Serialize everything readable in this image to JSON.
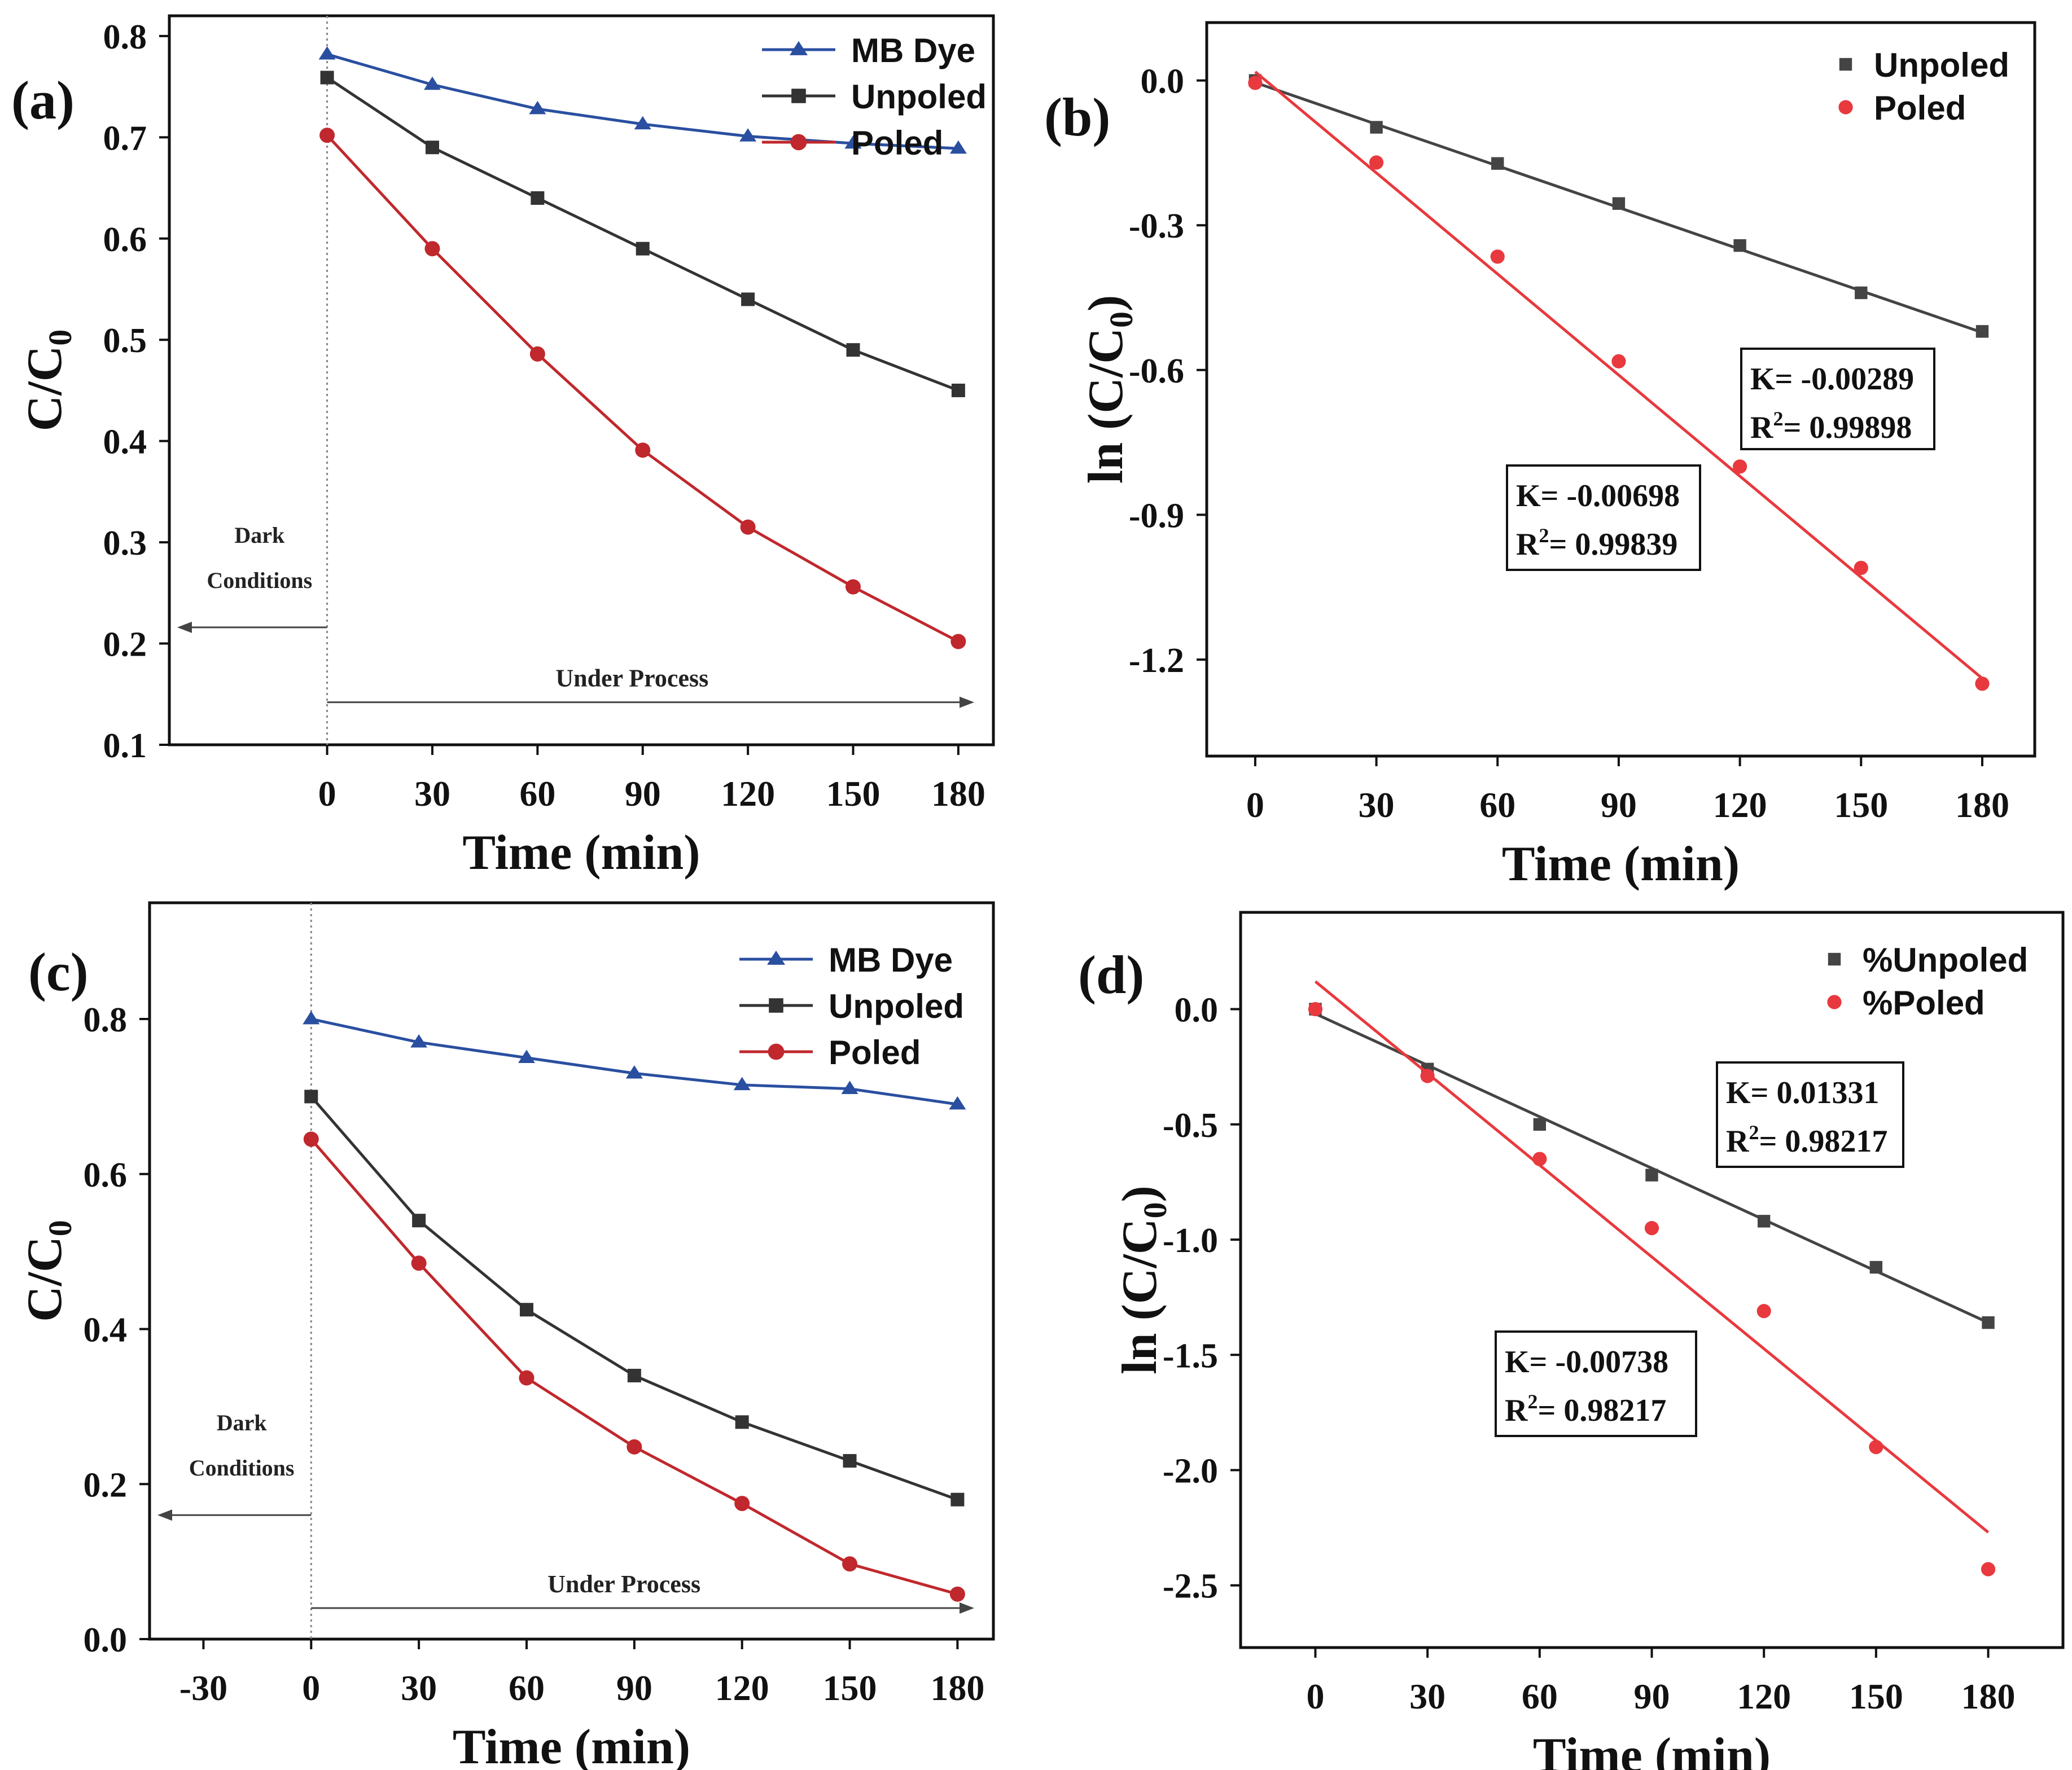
{
  "chart_data": [
    {
      "type": "line",
      "panel_label": "(a)",
      "xlabel": "Time (min)",
      "ylabel_main": "C/C",
      "ylabel_sub": "0",
      "xlim": [
        -45,
        190
      ],
      "ylim": [
        0.1,
        0.82
      ],
      "xticks": [
        0,
        30,
        60,
        90,
        120,
        150,
        180
      ],
      "xtick_labels": [
        "0",
        "30",
        "60",
        "90",
        "120",
        "150",
        "180"
      ],
      "yticks": [
        0.1,
        0.2,
        0.3,
        0.4,
        0.5,
        0.6,
        0.7,
        0.8
      ],
      "ytick_labels": [
        "0.1",
        "0.2",
        "0.3",
        "0.4",
        "0.5",
        "0.6",
        "0.7",
        "0.8"
      ],
      "series": [
        {
          "name": "MB Dye",
          "color": "#2a4fa0",
          "marker": "triangle",
          "x": [
            0,
            30,
            60,
            90,
            120,
            150,
            180
          ],
          "values": [
            0.782,
            0.752,
            0.728,
            0.713,
            0.701,
            0.694,
            0.689
          ]
        },
        {
          "name": "Unpoled",
          "color": "#333333",
          "marker": "square",
          "x": [
            0,
            30,
            60,
            90,
            120,
            150,
            180
          ],
          "values": [
            0.759,
            0.69,
            0.64,
            0.59,
            0.54,
            0.49,
            0.45
          ]
        },
        {
          "name": "Poled",
          "color": "#c0282d",
          "marker": "circle",
          "x": [
            0,
            30,
            60,
            90,
            120,
            150,
            180
          ],
          "values": [
            0.702,
            0.59,
            0.486,
            0.391,
            0.315,
            0.256,
            0.202
          ]
        }
      ],
      "annotations": {
        "dark_line1": "Dark",
        "dark_line2": "Conditions",
        "process": "Under Process",
        "dark_arrow_y": 0.216,
        "process_arrow_y": 0.142
      }
    },
    {
      "type": "scatter",
      "panel_label": "(b)",
      "xlabel": "Time (min)",
      "ylabel_main": "ln (C/C",
      "ylabel_sub": "0",
      "ylabel_end": ")",
      "xlim": [
        -12,
        193
      ],
      "ylim": [
        -1.4,
        0.12
      ],
      "xticks": [
        0,
        30,
        60,
        90,
        120,
        150,
        180
      ],
      "xtick_labels": [
        "0",
        "30",
        "60",
        "90",
        "120",
        "150",
        "180"
      ],
      "yticks": [
        0.0,
        -0.3,
        -0.6,
        -0.9,
        -1.2
      ],
      "ytick_labels": [
        "0.0",
        "-0.3",
        "-0.6",
        "-0.9",
        "-1.2"
      ],
      "series": [
        {
          "name": "Unpoled",
          "color": "#444444",
          "marker": "square",
          "x": [
            0,
            30,
            60,
            90,
            120,
            150,
            180
          ],
          "values": [
            0.0,
            -0.097,
            -0.172,
            -0.255,
            -0.342,
            -0.44,
            -0.52
          ],
          "fit": [
            -0.0043,
            -0.5222
          ]
        },
        {
          "name": "Poled",
          "color": "#e8393e",
          "marker": "circle",
          "x": [
            0,
            30,
            60,
            90,
            120,
            150,
            180
          ],
          "values": [
            -0.005,
            -0.17,
            -0.365,
            -0.582,
            -0.8,
            -1.01,
            -1.25
          ],
          "fit": [
            0.018,
            -1.239
          ]
        }
      ],
      "annotations": [
        {
          "line1": "K= -0.00289",
          "line2_pre": "R",
          "line2_sup": "2",
          "line2_post": "= 0.99898"
        },
        {
          "line1": "K= -0.00698",
          "line2_pre": "R",
          "line2_sup": "2",
          "line2_post": "= 0.99839"
        }
      ]
    },
    {
      "type": "line",
      "panel_label": "(c)",
      "xlabel": "Time (min)",
      "ylabel_main": "C/C",
      "ylabel_sub": "0",
      "xlim": [
        -45,
        190
      ],
      "ylim": [
        0.0,
        0.95
      ],
      "xticks": [
        -30,
        0,
        30,
        60,
        90,
        120,
        150,
        180
      ],
      "xtick_labels": [
        "-30",
        "0",
        "30",
        "60",
        "90",
        "120",
        "150",
        "180"
      ],
      "yticks": [
        0.0,
        0.2,
        0.4,
        0.6,
        0.8
      ],
      "ytick_labels": [
        "0.0",
        "0.2",
        "0.4",
        "0.6",
        "0.8"
      ],
      "series": [
        {
          "name": "MB Dye",
          "color": "#2a4fa0",
          "marker": "triangle",
          "x": [
            0,
            30,
            60,
            90,
            120,
            150,
            180
          ],
          "values": [
            0.8,
            0.77,
            0.75,
            0.73,
            0.715,
            0.71,
            0.69
          ]
        },
        {
          "name": "Unpoled",
          "color": "#333333",
          "marker": "square",
          "x": [
            0,
            30,
            60,
            90,
            120,
            150,
            180
          ],
          "values": [
            0.7,
            0.54,
            0.425,
            0.34,
            0.28,
            0.23,
            0.18
          ]
        },
        {
          "name": "Poled",
          "color": "#c0282d",
          "marker": "circle",
          "x": [
            0,
            30,
            60,
            90,
            120,
            150,
            180
          ],
          "values": [
            0.645,
            0.485,
            0.337,
            0.248,
            0.175,
            0.097,
            0.058
          ]
        }
      ],
      "annotations": {
        "dark_line1": "Dark",
        "dark_line2": "Conditions",
        "process": "Under Process",
        "dark_arrow_y": 0.16,
        "process_arrow_y": 0.04
      }
    },
    {
      "type": "scatter",
      "panel_label": "(d)",
      "xlabel": "Time (min)",
      "ylabel_main": "ln (C/C",
      "ylabel_sub": "0",
      "ylabel_end": ")",
      "xlim": [
        -20,
        200
      ],
      "ylim": [
        -2.77,
        0.42
      ],
      "xticks": [
        0,
        30,
        60,
        90,
        120,
        150,
        180
      ],
      "xtick_labels": [
        "0",
        "30",
        "60",
        "90",
        "120",
        "150",
        "180"
      ],
      "yticks": [
        0.0,
        -0.5,
        -1.0,
        -1.5,
        -2.0,
        -2.5
      ],
      "ytick_labels": [
        "0.0",
        "-0.5",
        "-1.0",
        "-1.5",
        "-2.0",
        "-2.5"
      ],
      "series": [
        {
          "name": "%Unpoled",
          "color": "#444444",
          "marker": "square",
          "x": [
            0,
            30,
            60,
            90,
            120,
            150,
            180
          ],
          "values": [
            0.0,
            -0.26,
            -0.5,
            -0.72,
            -0.92,
            -1.12,
            -1.36
          ],
          "fit": [
            -0.02,
            -1.36
          ]
        },
        {
          "name": "%Poled",
          "color": "#e8393e",
          "marker": "circle",
          "x": [
            0,
            30,
            60,
            90,
            120,
            150,
            180
          ],
          "values": [
            0.0,
            -0.29,
            -0.65,
            -0.95,
            -1.31,
            -1.9,
            -2.43
          ],
          "fit": [
            0.12,
            -2.27
          ]
        }
      ],
      "annotations": [
        {
          "line1": "K= 0.01331",
          "line2_pre": "R",
          "line2_sup": "2",
          "line2_post": "= 0.98217"
        },
        {
          "line1": "K= -0.00738",
          "line2_pre": "R",
          "line2_sup": "2",
          "line2_post": "= 0.98217"
        }
      ]
    }
  ]
}
